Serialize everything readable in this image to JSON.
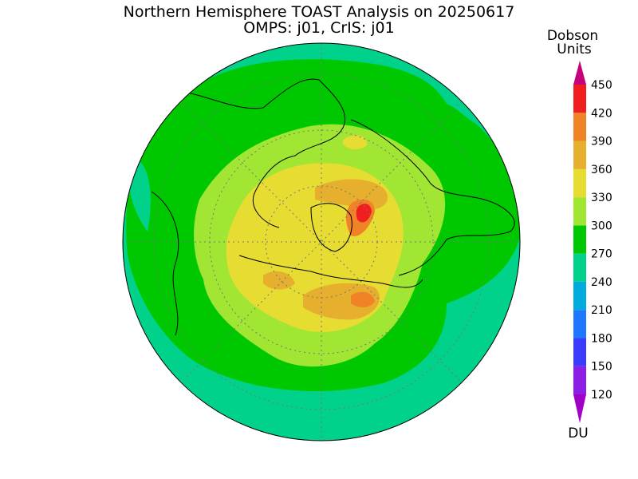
{
  "title": "Northern Hemisphere TOAST Analysis on 20250617",
  "subtitle": "OMPS: j01, CrIS: j01",
  "colorbar": {
    "label": [
      "Dobson",
      "Units"
    ],
    "unit": "DU",
    "ticks": [
      120,
      150,
      180,
      210,
      240,
      270,
      300,
      330,
      360,
      390,
      420,
      450
    ],
    "colors": [
      "#a000c8",
      "#8c1ee6",
      "#3c3cff",
      "#1e78ff",
      "#00aadc",
      "#00d28c",
      "#00c800",
      "#a0e632",
      "#e6dc32",
      "#e6af2d",
      "#f08228",
      "#f01e1e",
      "#c8007a"
    ]
  }
}
